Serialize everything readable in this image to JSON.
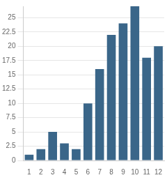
{
  "chart_data": {
    "type": "bar",
    "categories": [
      "1",
      "2",
      "3",
      "4",
      "5",
      "6",
      "7",
      "8",
      "9",
      "10",
      "11",
      "12"
    ],
    "values": [
      1,
      2,
      5,
      3,
      2,
      10,
      16,
      22,
      24,
      27,
      18,
      20
    ],
    "color": "#3a6689",
    "ylim": [
      0,
      27
    ],
    "yticks": [
      0,
      2.5,
      5,
      7.5,
      10,
      12.5,
      15,
      17.5,
      20,
      22.5,
      25
    ],
    "grid": true
  }
}
